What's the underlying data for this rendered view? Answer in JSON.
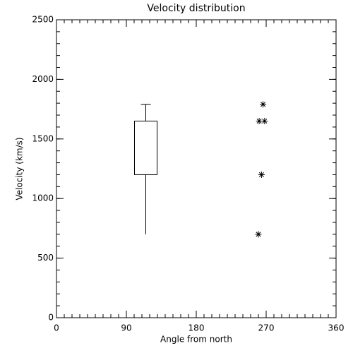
{
  "chart_data": {
    "type": "box",
    "title": "Velocity distribution",
    "xlabel": "Angle from north",
    "ylabel": "Velocity (km/s)",
    "xlim": [
      0,
      360
    ],
    "xticks": [
      0,
      90,
      180,
      270,
      360
    ],
    "x_minor_step": 10,
    "ylim": [
      0,
      2500
    ],
    "yticks": [
      0,
      500,
      1000,
      1500,
      2000,
      2500
    ],
    "y_minor_step": 100,
    "color": "#000000",
    "box": {
      "x": 115,
      "whisker_low": 700,
      "q1": 1200,
      "q3": 1650,
      "whisker_high": 1790
    },
    "overlay": {
      "type": "scatter",
      "marker": "asterisk",
      "x": [
        266,
        261,
        268,
        264,
        260
      ],
      "y": [
        1790,
        1650,
        1650,
        1200,
        700
      ]
    }
  }
}
